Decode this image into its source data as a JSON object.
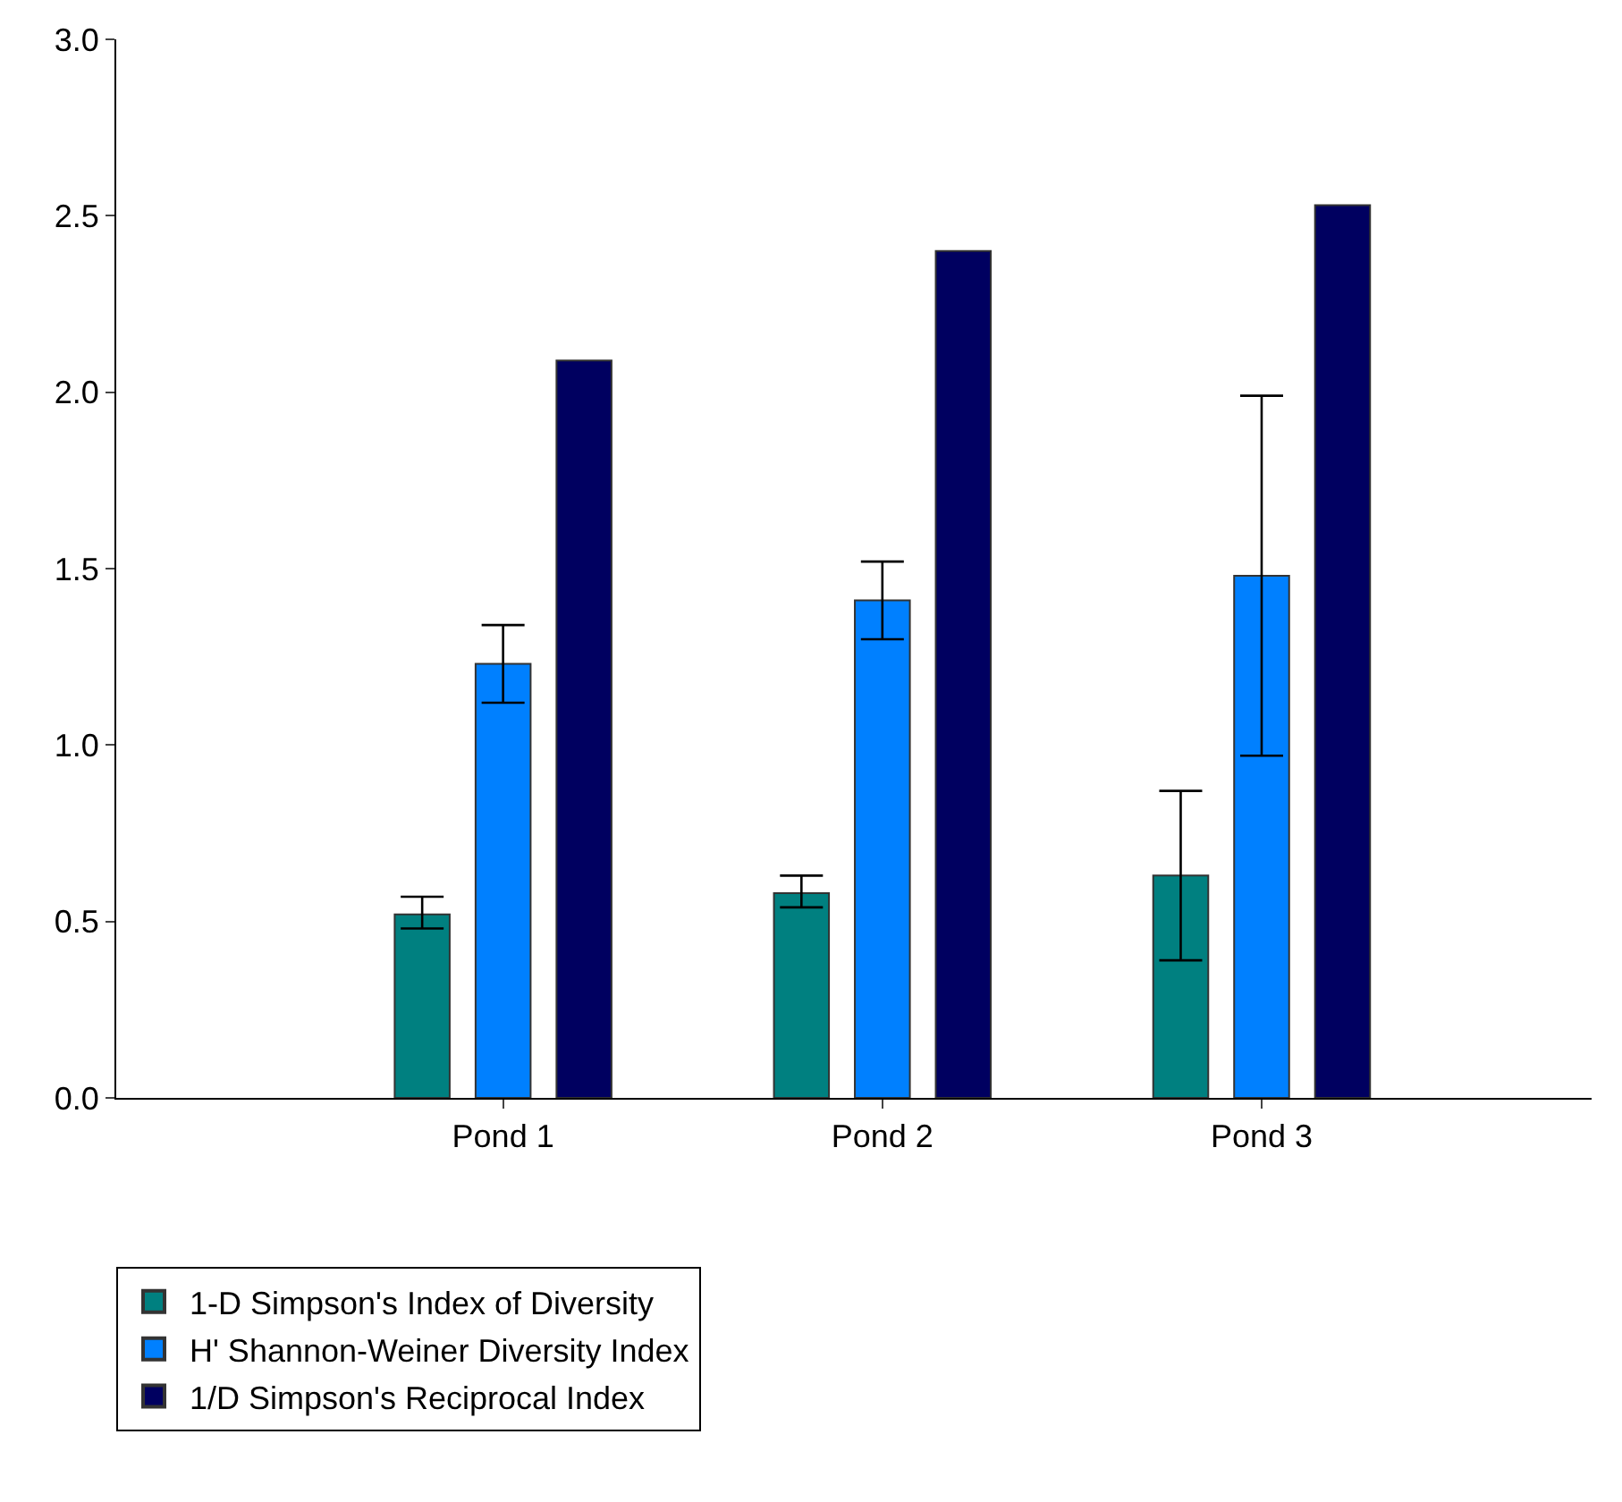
{
  "chart_data": {
    "type": "bar",
    "categories": [
      "Pond 1",
      "Pond 2",
      "Pond 3"
    ],
    "series": [
      {
        "name": "1-D Simpson's Index of Diversity",
        "color": "#008080",
        "values": [
          0.52,
          0.58,
          0.63
        ],
        "errors": [
          [
            0.48,
            0.57
          ],
          [
            0.54,
            0.63
          ],
          [
            0.39,
            0.87
          ]
        ]
      },
      {
        "name": "H' Shannon-Weiner Diversity Index",
        "color": "#0080ff",
        "values": [
          1.23,
          1.41,
          1.48
        ],
        "errors": [
          [
            1.12,
            1.34
          ],
          [
            1.3,
            1.52
          ],
          [
            0.97,
            1.99
          ]
        ]
      },
      {
        "name": "1/D Simpson's Reciprocal Index",
        "color": "#000060",
        "values": [
          2.09,
          2.4,
          2.53
        ]
      }
    ],
    "ylim": [
      0,
      3.0
    ],
    "yticks": [
      {
        "value": 0,
        "label": "0.0"
      },
      {
        "value": 0.5,
        "label": "0.5"
      },
      {
        "value": 1.0,
        "label": "1.0"
      },
      {
        "value": 1.5,
        "label": "1.5"
      },
      {
        "value": 2.0,
        "label": "2.0"
      },
      {
        "value": 2.5,
        "label": "2.5"
      },
      {
        "value": 3.0,
        "label": "3.0"
      }
    ],
    "legend": "bottom left"
  }
}
